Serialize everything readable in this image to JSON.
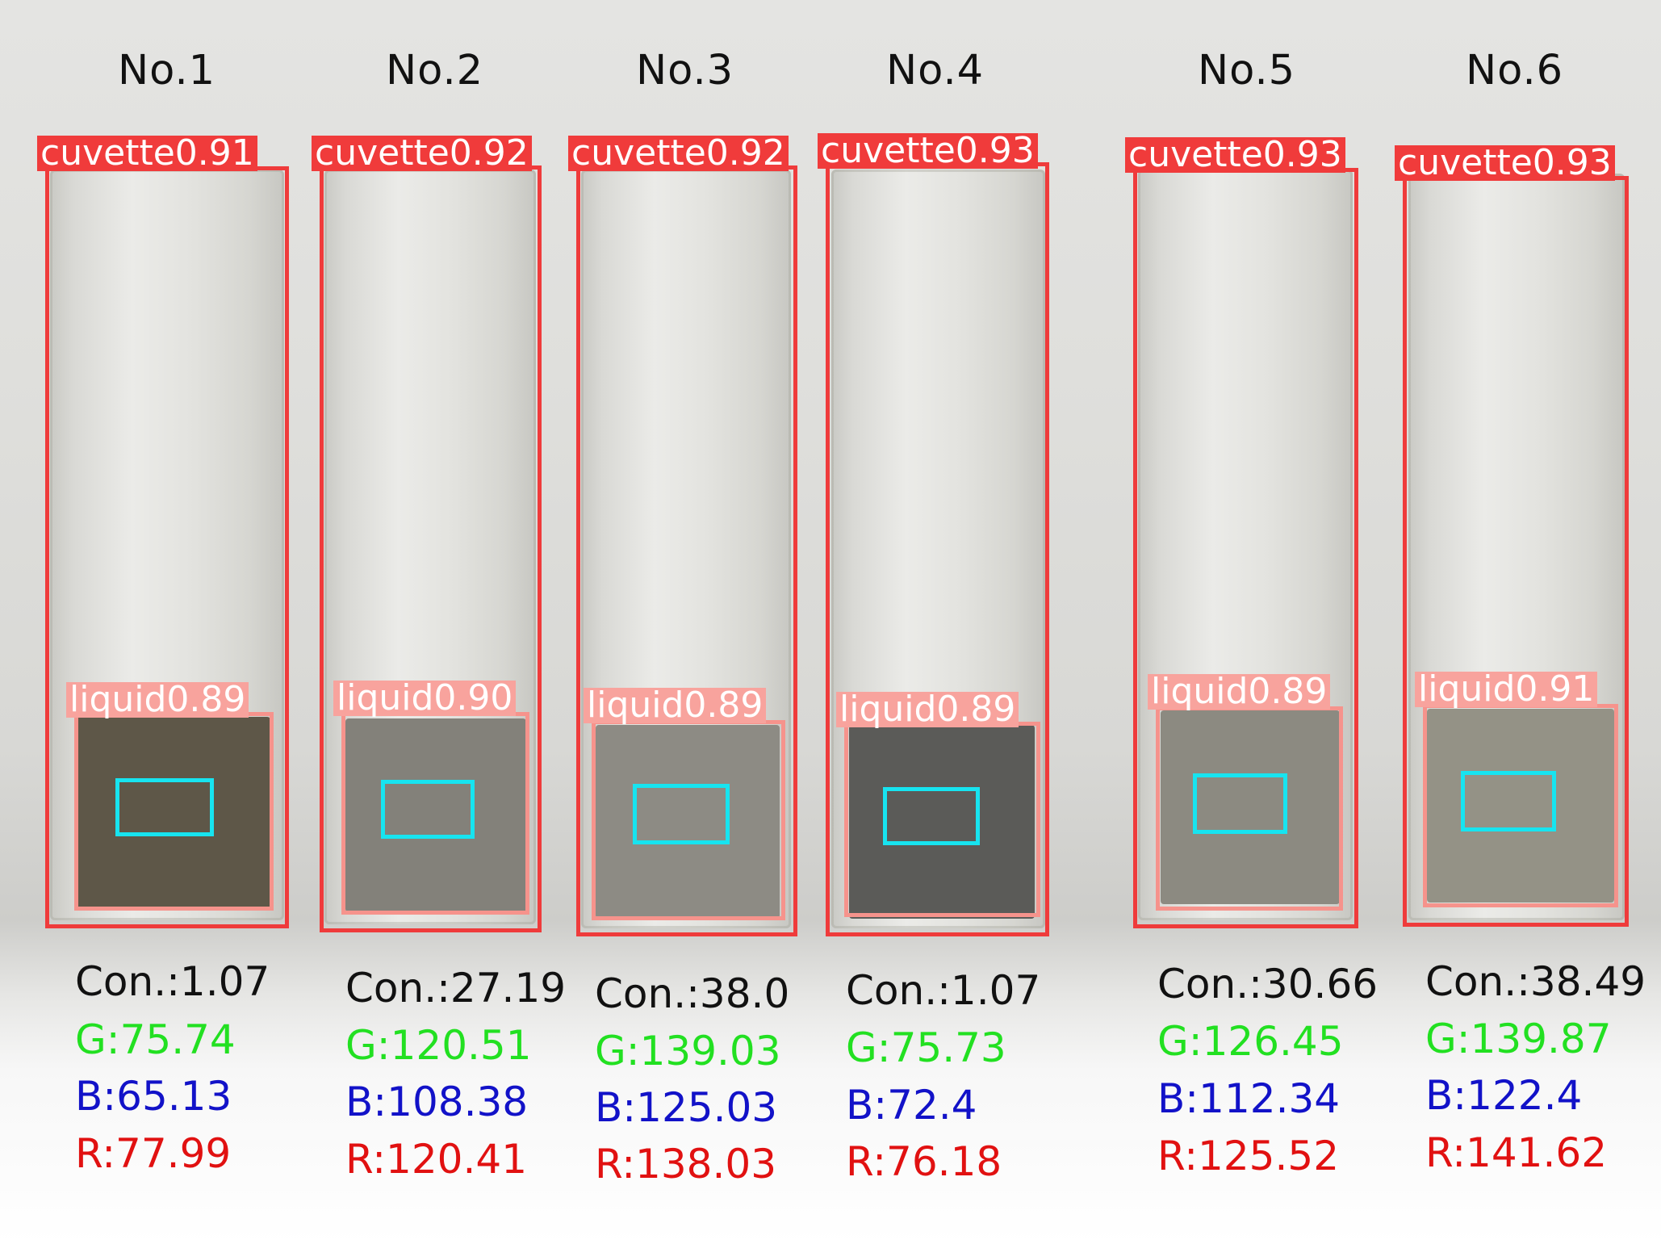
{
  "samples": [
    {
      "title": "No.1",
      "cuvette_label": "cuvette0.91",
      "liquid_label": "liquid0.89",
      "con": "Con.:1.07",
      "g": "G:75.74",
      "b": "B:65.13",
      "r": "R:77.99"
    },
    {
      "title": "No.2",
      "cuvette_label": "cuvette0.92",
      "liquid_label": "liquid0.90",
      "con": "Con.:27.19",
      "g": "G:120.51",
      "b": "B:108.38",
      "r": "R:120.41"
    },
    {
      "title": "No.3",
      "cuvette_label": "cuvette0.92",
      "liquid_label": "liquid0.89",
      "con": "Con.:38.0",
      "g": "G:139.03",
      "b": "B:125.03",
      "r": "R:138.03"
    },
    {
      "title": "No.4",
      "cuvette_label": "cuvette0.93",
      "liquid_label": "liquid0.89",
      "con": "Con.:1.07",
      "g": "G:75.73",
      "b": "B:72.4",
      "r": "R:76.18"
    },
    {
      "title": "No.5",
      "cuvette_label": "cuvette0.93",
      "liquid_label": "liquid0.89",
      "con": "Con.:30.66",
      "g": "G:126.45",
      "b": "B:112.34",
      "r": "R:125.52"
    },
    {
      "title": "No.6",
      "cuvette_label": "cuvette0.93",
      "liquid_label": "liquid0.91",
      "con": "Con.:38.49",
      "g": "G:139.87",
      "b": "B:122.4",
      "r": "R:141.62"
    }
  ],
  "colors": {
    "cuvette_box": "#ef3b3b",
    "liquid_box": "#f6938c",
    "roi_box": "#17e4f0",
    "g_text": "#22e021",
    "b_text": "#1212c8",
    "r_text": "#e11111"
  }
}
